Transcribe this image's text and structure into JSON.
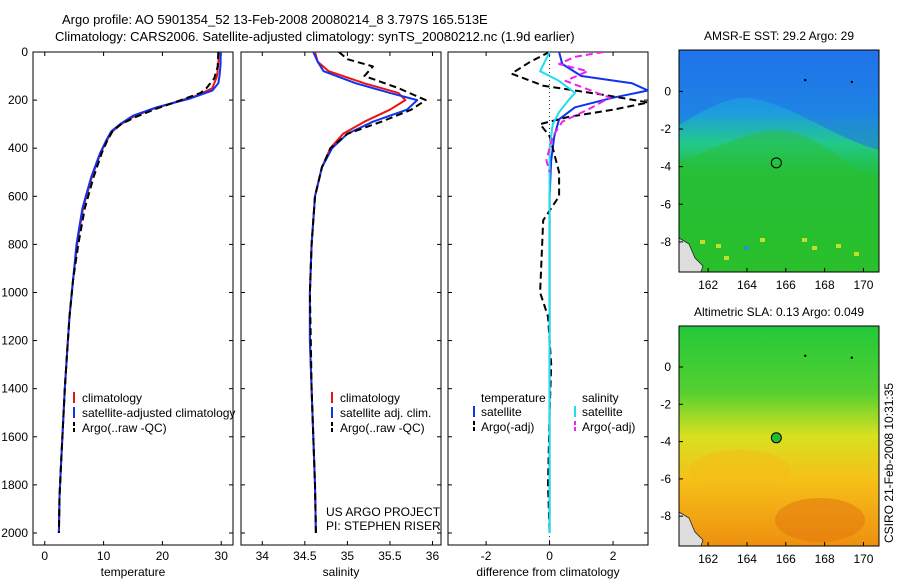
{
  "header": {
    "title_line1": "Argo profile: AO 5901354_52 13-Feb-2008 20080214_8 3.797S 165.513E",
    "title_line2": "Climatology: CARS2006. Satellite-adjusted climatology: synTS_20080212.nc (1.9d earlier)"
  },
  "side_stamp": "CSIRO 21-Feb-2008 10:31:35",
  "colors": {
    "climatology": "#ee1111",
    "satellite": "#1133ee",
    "argo": "#000000",
    "satellite_salinity": "#22ddee",
    "argo_salinity_adj": "#ee22ee"
  },
  "chart_data": [
    {
      "type": "line",
      "panel": "temperature",
      "xlabel": "temperature",
      "ylabel": "",
      "xlim": [
        -2,
        32
      ],
      "ylim": [
        2050,
        0
      ],
      "xticks": [
        0,
        10,
        20,
        30
      ],
      "yticks": [
        0,
        200,
        400,
        600,
        800,
        1000,
        1200,
        1400,
        1600,
        1800,
        2000
      ],
      "legend": [
        "climatology",
        "satellite-adjusted climatology",
        "Argo(..raw -QC)"
      ],
      "series": [
        {
          "name": "climatology",
          "color": "climatology",
          "dash": false,
          "x": [
            29.6,
            29.5,
            29.3,
            28.5,
            26.0,
            22.0,
            18.0,
            15.0,
            13.0,
            11.5,
            10.5,
            9.5,
            8.0,
            6.5,
            5.5,
            4.8,
            4.2,
            3.8,
            3.4,
            3.1,
            2.8,
            2.5,
            2.4
          ],
          "y": [
            0,
            50,
            100,
            150,
            180,
            210,
            240,
            270,
            300,
            330,
            370,
            420,
            520,
            650,
            800,
            950,
            1100,
            1250,
            1400,
            1550,
            1700,
            1850,
            2000
          ]
        },
        {
          "name": "satellite-adjusted climatology",
          "color": "satellite",
          "dash": false,
          "x": [
            29.9,
            29.9,
            29.7,
            29.5,
            28.5,
            24.5,
            19.0,
            15.0,
            12.8,
            11.3,
            10.4,
            9.4,
            7.9,
            6.4,
            5.4,
            4.8,
            4.2,
            3.8,
            3.4,
            3.1,
            2.8,
            2.5,
            2.4
          ],
          "y": [
            0,
            50,
            100,
            130,
            160,
            195,
            230,
            265,
            300,
            330,
            370,
            420,
            520,
            650,
            800,
            950,
            1100,
            1250,
            1400,
            1550,
            1700,
            1850,
            2000
          ]
        },
        {
          "name": "Argo(..raw -QC)",
          "color": "argo",
          "dash": true,
          "x": [
            29.5,
            29.4,
            28.8,
            27.5,
            26.5,
            22.0,
            18.5,
            15.5,
            13.0,
            11.5,
            10.6,
            9.7,
            8.3,
            6.8,
            5.7,
            4.8,
            4.2,
            3.8,
            3.4,
            3.1,
            2.8,
            2.5,
            2.4
          ],
          "y": [
            0,
            60,
            110,
            150,
            170,
            210,
            240,
            270,
            300,
            330,
            370,
            420,
            520,
            650,
            800,
            950,
            1100,
            1250,
            1400,
            1550,
            1700,
            1850,
            2000
          ]
        }
      ]
    },
    {
      "type": "line",
      "panel": "salinity",
      "xlabel": "salinity",
      "ylabel": "",
      "xlim": [
        33.75,
        36.1
      ],
      "ylim": [
        2050,
        0
      ],
      "xticks": [
        34,
        34.5,
        35,
        35.5,
        36
      ],
      "yticks": [
        0,
        200,
        400,
        600,
        800,
        1000,
        1200,
        1400,
        1600,
        1800,
        2000
      ],
      "legend": [
        "climatology",
        "satellite adj. clim.",
        "Argo(..raw -QC)"
      ],
      "series": [
        {
          "name": "climatology",
          "color": "climatology",
          "dash": false,
          "x": [
            34.62,
            34.65,
            34.78,
            35.2,
            35.6,
            35.68,
            35.5,
            35.2,
            34.95,
            34.8,
            34.7,
            34.62,
            34.58,
            34.56,
            34.56,
            34.58,
            34.6,
            34.62,
            34.63
          ],
          "y": [
            0,
            40,
            80,
            130,
            170,
            200,
            240,
            290,
            340,
            400,
            480,
            600,
            800,
            1000,
            1200,
            1400,
            1600,
            1800,
            2000
          ]
        },
        {
          "name": "satellite adj. clim.",
          "color": "satellite",
          "dash": false,
          "x": [
            34.6,
            34.65,
            34.72,
            35.1,
            35.5,
            35.82,
            35.7,
            35.3,
            35.0,
            34.82,
            34.7,
            34.62,
            34.58,
            34.56,
            34.56,
            34.58,
            34.6,
            34.62,
            34.63
          ],
          "y": [
            0,
            40,
            80,
            130,
            170,
            200,
            240,
            290,
            340,
            400,
            480,
            600,
            800,
            1000,
            1200,
            1400,
            1600,
            1800,
            2000
          ]
        },
        {
          "name": "Argo(..raw -QC)",
          "color": "argo",
          "dash": true,
          "x": [
            34.9,
            35.0,
            35.3,
            35.2,
            35.6,
            35.92,
            35.75,
            35.4,
            35.0,
            34.8,
            34.7,
            34.62,
            34.58,
            34.56,
            34.57,
            34.58,
            34.6,
            34.62,
            34.63
          ],
          "y": [
            0,
            30,
            60,
            100,
            150,
            200,
            240,
            290,
            340,
            400,
            480,
            600,
            800,
            1000,
            1200,
            1400,
            1600,
            1800,
            2000
          ]
        }
      ]
    },
    {
      "type": "line",
      "panel": "difference",
      "xlabel": "difference from climatology",
      "ylabel": "",
      "xlim": [
        -3.2,
        3.1
      ],
      "ylim": [
        2050,
        0
      ],
      "xticks": [
        -2,
        0,
        2
      ],
      "yticks": [
        0,
        200,
        400,
        600,
        800,
        1000,
        1200,
        1400,
        1600,
        1800,
        2000
      ],
      "legend_left": {
        "title": "temperature",
        "items": [
          "satellite",
          "Argo(-adj)"
        ]
      },
      "legend_right": {
        "title": "salinity",
        "items": [
          "satellite",
          "Argo(-adj)"
        ]
      },
      "series": [
        {
          "name": "temperature satellite",
          "color": "satellite",
          "dash": false,
          "x": [
            0.3,
            0.4,
            1.0,
            2.6,
            3.1,
            2.0,
            0.8,
            0.3,
            0.15,
            0.05,
            0.0,
            0.0,
            0.0,
            0.0,
            0.0,
            0.0
          ],
          "y": [
            0,
            50,
            100,
            130,
            160,
            190,
            230,
            280,
            350,
            450,
            600,
            800,
            1000,
            1400,
            1800,
            2000
          ]
        },
        {
          "name": "temperature Argo(-adj)",
          "color": "argo",
          "dash": true,
          "x": [
            0.0,
            -0.6,
            -1.2,
            -0.2,
            1.8,
            3.1,
            2.0,
            0.6,
            -0.3,
            0.0,
            0.3,
            0.3,
            -0.2,
            -0.3,
            -0.05,
            0.05,
            0.0,
            -0.05,
            0.0
          ],
          "y": [
            0,
            40,
            90,
            140,
            180,
            210,
            240,
            270,
            300,
            350,
            500,
            600,
            700,
            1000,
            1100,
            1300,
            1500,
            1800,
            2000
          ]
        },
        {
          "name": "salinity satellite",
          "color": "satellite_salinity",
          "dash": false,
          "x": [
            0.0,
            -0.3,
            0.3,
            0.8,
            0.6,
            0.3,
            0.1,
            0.0,
            0.0,
            0.0,
            0.0
          ],
          "y": [
            0,
            80,
            120,
            170,
            200,
            250,
            300,
            400,
            800,
            1500,
            2000
          ]
        },
        {
          "name": "salinity Argo(-adj)",
          "color": "argo_salinity_adj",
          "dash": true,
          "x": [
            1.7,
            0.8,
            0.3,
            1.2,
            0.5,
            1.9,
            1.2,
            0.4,
            0.1,
            0.0,
            -0.1,
            0.0
          ],
          "y": [
            0,
            20,
            50,
            80,
            120,
            190,
            240,
            290,
            350,
            400,
            450,
            500
          ]
        }
      ]
    },
    {
      "type": "heatmap",
      "panel": "sst_map",
      "title": "AMSR-E SST: 29.2 Argo: 29",
      "xlim": [
        160.5,
        170.8
      ],
      "ylim": [
        -9.6,
        2.2
      ],
      "xticks": [
        162,
        164,
        166,
        168,
        170
      ],
      "yticks": [
        0,
        -2,
        -4,
        -6,
        -8
      ],
      "argo_position": [
        165.513,
        -3.797
      ]
    },
    {
      "type": "heatmap",
      "panel": "sla_map",
      "title": "Altimetric SLA: 0.13 Argo: 0.049",
      "xlim": [
        160.5,
        170.8
      ],
      "ylim": [
        -9.6,
        2.2
      ],
      "xticks": [
        162,
        164,
        166,
        168,
        170
      ],
      "yticks": [
        0,
        -2,
        -4,
        -6,
        -8
      ],
      "argo_position": [
        165.513,
        -3.797
      ]
    }
  ],
  "footer_note": {
    "line1": "US ARGO PROJECT",
    "line2": "PI: STEPHEN RISER"
  }
}
